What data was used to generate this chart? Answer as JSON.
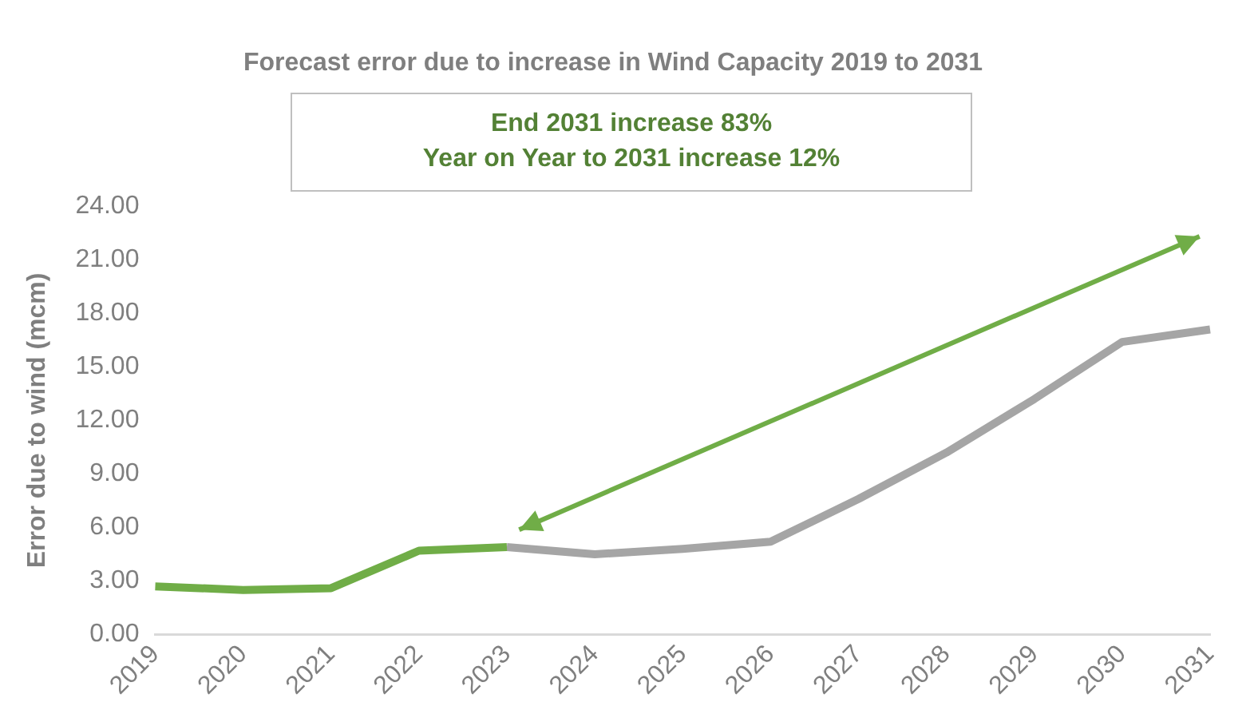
{
  "chart_data": {
    "type": "line",
    "title": "Forecast error due to increase in Wind Capacity 2019 to 2031",
    "ylabel": "Error due to wind (mcm)",
    "categories": [
      "2019",
      "2020",
      "2021",
      "2022",
      "2023",
      "2024",
      "2025",
      "2026",
      "2027",
      "2028",
      "2029",
      "2030",
      "2031"
    ],
    "series": [
      {
        "color": "#70ad47",
        "values": [
          2.7,
          2.5,
          2.6,
          4.7,
          4.9,
          null,
          null,
          null,
          null,
          null,
          null,
          null,
          null
        ]
      },
      {
        "color": "#a5a5a5",
        "values": [
          null,
          null,
          null,
          null,
          4.9,
          4.5,
          4.8,
          5.2,
          7.6,
          10.2,
          13.2,
          16.4,
          17.1
        ]
      }
    ],
    "ylim": [
      0,
      24
    ],
    "yticks": [
      {
        "value": 0,
        "label": "0.00"
      },
      {
        "value": 3,
        "label": "3.00"
      },
      {
        "value": 6,
        "label": "6.00"
      },
      {
        "value": 9,
        "label": "9.00"
      },
      {
        "value": 12,
        "label": "12.00"
      },
      {
        "value": 15,
        "label": "15.00"
      },
      {
        "value": 18,
        "label": "18.00"
      },
      {
        "value": 21,
        "label": "21.00"
      },
      {
        "value": 24,
        "label": "24.00"
      }
    ],
    "grid": false,
    "legend": false,
    "marker": "none",
    "line_style": "solid",
    "annotations": [
      "End 2031 increase 83%",
      "Year on Year to 2031 increase 12%"
    ]
  }
}
